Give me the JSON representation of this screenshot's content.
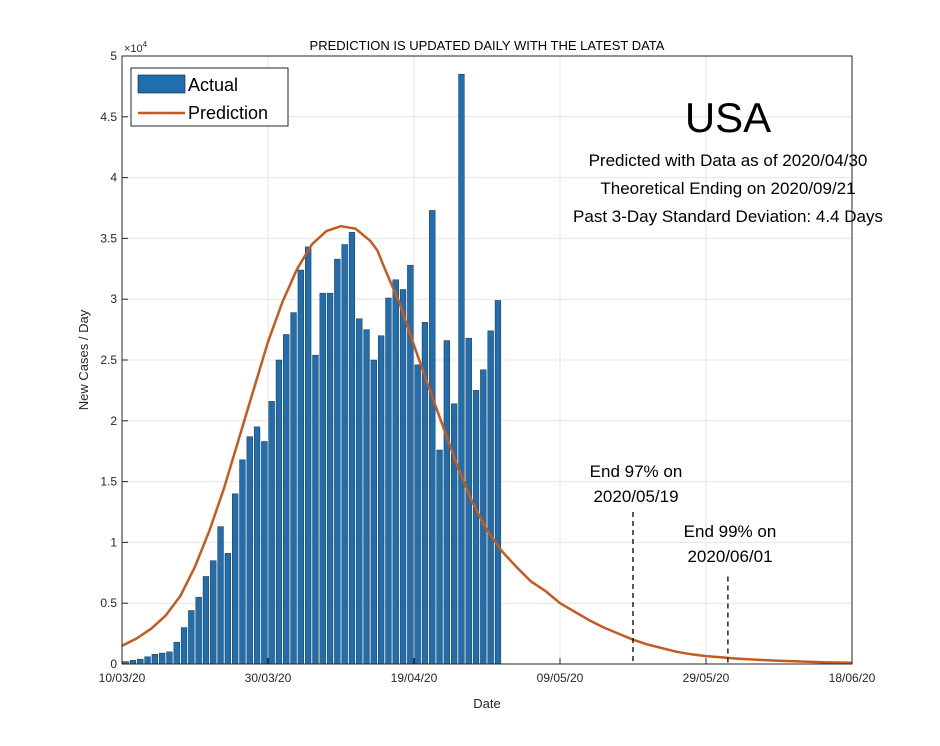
{
  "chart_data": {
    "type": "bar",
    "title": "PREDICTION IS UPDATED DAILY WITH THE LATEST DATA",
    "xlabel": "Date",
    "ylabel": "New Cases / Day",
    "y_exponent_label": "×10",
    "y_exponent_power": "4",
    "ylim": [
      0,
      5
    ],
    "yticks": [
      0,
      0.5,
      1,
      1.5,
      2,
      2.5,
      3,
      3.5,
      4,
      4.5,
      5
    ],
    "ytick_labels": [
      "0",
      "0.5",
      "1",
      "1.5",
      "2",
      "2.5",
      "3",
      "3.5",
      "4",
      "4.5",
      "5"
    ],
    "x_day_range": [
      0,
      100
    ],
    "xticks": [
      0,
      20,
      40,
      60,
      80,
      100
    ],
    "xtick_labels": [
      "10/03/20",
      "30/03/20",
      "19/04/20",
      "09/05/20",
      "29/05/20",
      "18/06/20"
    ],
    "grid": true,
    "legend_position": "top-left",
    "series": [
      {
        "name": "Actual",
        "type": "bar",
        "color": "#1f6fb0",
        "start_day": 0,
        "values": [
          0.02,
          0.03,
          0.04,
          0.06,
          0.08,
          0.09,
          0.1,
          0.18,
          0.3,
          0.44,
          0.55,
          0.72,
          0.85,
          1.13,
          0.91,
          1.4,
          1.68,
          1.87,
          1.95,
          1.83,
          2.16,
          2.5,
          2.71,
          2.89,
          3.24,
          3.43,
          2.54,
          3.05,
          3.05,
          3.33,
          3.45,
          3.55,
          2.84,
          2.75,
          2.5,
          2.7,
          3.01,
          3.16,
          3.08,
          3.28,
          2.46,
          2.81,
          3.73,
          1.76,
          2.66,
          2.14,
          4.85,
          2.68,
          2.25,
          2.42,
          2.74,
          2.99
        ]
      },
      {
        "name": "Prediction",
        "type": "line",
        "color": "#c55a1f",
        "x": [
          0,
          2,
          4,
          6,
          8,
          10,
          12,
          14,
          16,
          18,
          20,
          22,
          24,
          26,
          28,
          30,
          32,
          34,
          35,
          36,
          38,
          40,
          42,
          44,
          46,
          48,
          50,
          52,
          54,
          56,
          58,
          60,
          62,
          64,
          66,
          68,
          70,
          72,
          74,
          76,
          78,
          80,
          82,
          84,
          86,
          88,
          90,
          92,
          94,
          96,
          98,
          100
        ],
        "values": [
          0.15,
          0.21,
          0.29,
          0.4,
          0.56,
          0.8,
          1.1,
          1.45,
          1.85,
          2.25,
          2.65,
          2.98,
          3.25,
          3.45,
          3.56,
          3.6,
          3.58,
          3.48,
          3.4,
          3.25,
          2.97,
          2.62,
          2.28,
          1.95,
          1.62,
          1.33,
          1.1,
          0.93,
          0.8,
          0.68,
          0.6,
          0.5,
          0.43,
          0.36,
          0.3,
          0.25,
          0.2,
          0.16,
          0.13,
          0.1,
          0.08,
          0.065,
          0.055,
          0.045,
          0.038,
          0.032,
          0.027,
          0.022,
          0.018,
          0.015,
          0.012,
          0.01
        ]
      }
    ],
    "annotations": {
      "country": "USA",
      "info_lines": [
        "Predicted with Data as of 2020/04/30",
        "Theoretical Ending on 2020/09/21",
        "Past 3-Day Standard Deviation: 4.4 Days"
      ],
      "markers": [
        {
          "label_line1": "End 97% on",
          "label_line2": "2020/05/19",
          "day": 70,
          "top_value": 1.25
        },
        {
          "label_line1": "End 99% on",
          "label_line2": "2020/06/01",
          "day": 83,
          "top_value": 0.72
        }
      ]
    }
  }
}
